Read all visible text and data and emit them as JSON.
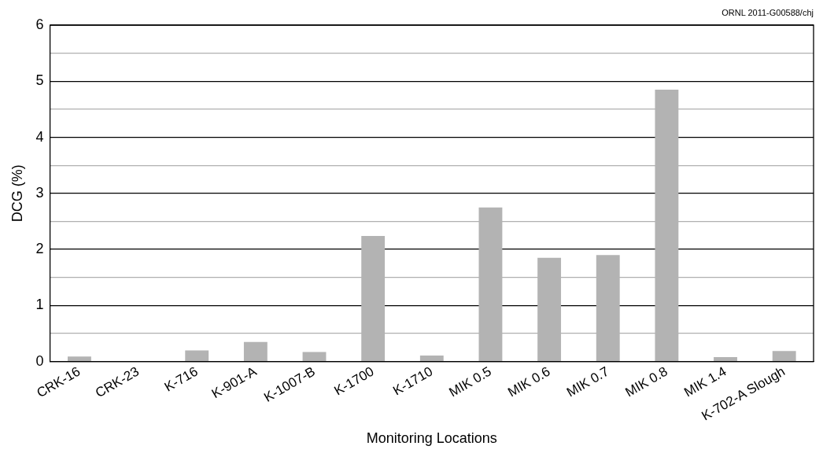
{
  "chart_data": {
    "type": "bar",
    "xlabel": "Monitoring Locations",
    "ylabel": "DCG (%)",
    "annotations": [
      "ORNL 2011-G00588/chj"
    ],
    "categories": [
      "CRK-16",
      "CRK-23",
      "K-716",
      "K-901-A",
      "K-1007-B",
      "K-1700",
      "K-1710",
      "MIK 0.5",
      "MIK 0.6",
      "MIK 0.7",
      "MIK 0.8",
      "MIK 1.4",
      "K-702-A Slough"
    ],
    "values": [
      0.09,
      0.01,
      0.2,
      0.35,
      0.17,
      2.24,
      0.11,
      2.75,
      1.85,
      1.9,
      4.85,
      0.08,
      0.19
    ],
    "color": "#b3b3b3",
    "ylim": [
      0,
      6
    ],
    "yticks": [
      0,
      {
        "value": 0.5,
        "label": null
      },
      1,
      {
        "value": 1.5,
        "label": null
      },
      2,
      {
        "value": 2.5,
        "label": null
      },
      3,
      {
        "value": 3.5,
        "label": null
      },
      4,
      {
        "value": 4.5,
        "label": null
      },
      5,
      {
        "value": 5.5,
        "label": null
      },
      6
    ],
    "grid": "y",
    "legend": false
  }
}
